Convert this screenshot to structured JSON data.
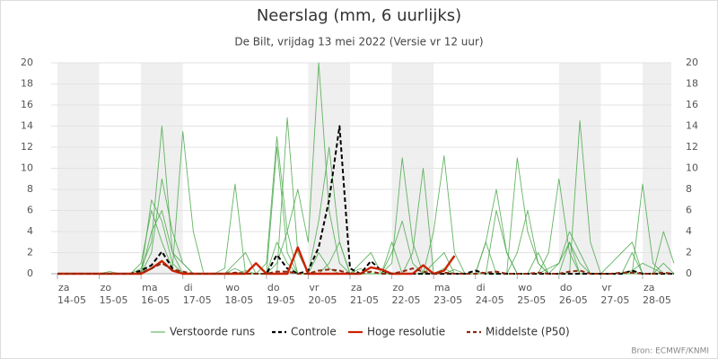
{
  "chart_data": {
    "type": "line",
    "title": "Neerslag (mm, 6 uurlijks)",
    "subtitle": "De Bilt, vrijdag 13 mei 2022 (Versie vr 12 uur)",
    "source": "Bron: ECMWF/KNMI",
    "days": [
      {
        "weekday": "za",
        "date": "14-05"
      },
      {
        "weekday": "zo",
        "date": "15-05"
      },
      {
        "weekday": "ma",
        "date": "16-05"
      },
      {
        "weekday": "di",
        "date": "17-05"
      },
      {
        "weekday": "wo",
        "date": "18-05"
      },
      {
        "weekday": "do",
        "date": "19-05"
      },
      {
        "weekday": "vr",
        "date": "20-05"
      },
      {
        "weekday": "za",
        "date": "21-05"
      },
      {
        "weekday": "zo",
        "date": "22-05"
      },
      {
        "weekday": "ma",
        "date": "23-05"
      },
      {
        "weekday": "di",
        "date": "24-05"
      },
      {
        "weekday": "wo",
        "date": "25-05"
      },
      {
        "weekday": "do",
        "date": "26-05"
      },
      {
        "weekday": "vr",
        "date": "27-05"
      },
      {
        "weekday": "za",
        "date": "28-05"
      }
    ],
    "shaded_days": [
      0,
      2,
      6,
      8,
      12,
      14
    ],
    "ylim": [
      0,
      20
    ],
    "yticks": [
      0,
      2,
      4,
      6,
      8,
      10,
      12,
      14,
      16,
      18,
      20
    ],
    "y2lim": [
      0,
      20
    ],
    "y2ticks": [
      0,
      2,
      4,
      6,
      8,
      10,
      12,
      14,
      16,
      18,
      20
    ],
    "grid": true,
    "legend": "bottom",
    "series": [
      {
        "name": "Verstoorde runs",
        "color": "#4aa84a",
        "members": [
          [
            0,
            0,
            0,
            0,
            0,
            0,
            0,
            0,
            0.5,
            3,
            14,
            2,
            0,
            0,
            0,
            0,
            0,
            0,
            0.3,
            0,
            0,
            1,
            4,
            8,
            3,
            20,
            6,
            1,
            0,
            0.5,
            0,
            0,
            2,
            5,
            1,
            0,
            0,
            0,
            0.4,
            0,
            0,
            3,
            8,
            2,
            0,
            0,
            0,
            0.5,
            1,
            4,
            2,
            0,
            0,
            0,
            0,
            0.3,
            1,
            0.5,
            0,
            0
          ],
          [
            0,
            0,
            0,
            0,
            0,
            0,
            0,
            0,
            1,
            6,
            3,
            0.5,
            13.5,
            4,
            0,
            0,
            0,
            0.5,
            0,
            0,
            0,
            12,
            2,
            0,
            0,
            0,
            1,
            3,
            0,
            0,
            0,
            0,
            1,
            11,
            3,
            0,
            0,
            0.5,
            0,
            0,
            0,
            0,
            0,
            0,
            11,
            4,
            1,
            0,
            0,
            0,
            14.5,
            3,
            0,
            0,
            0,
            0,
            0,
            0,
            0,
            0
          ],
          [
            0,
            0,
            0,
            0,
            0,
            0,
            0,
            0,
            0,
            7,
            5,
            1,
            0,
            0,
            0,
            0,
            0.5,
            8.5,
            0,
            0,
            0,
            0,
            14.8,
            2,
            0,
            0,
            0,
            0,
            0,
            0,
            0,
            0,
            0,
            0,
            2,
            10,
            0,
            0,
            0,
            0,
            0,
            3,
            0,
            0,
            0,
            0,
            0,
            2,
            9,
            2,
            0,
            0,
            0,
            0,
            0,
            0,
            8.5,
            1,
            0,
            0
          ],
          [
            0,
            0,
            0,
            0,
            0,
            0.2,
            0,
            0,
            0,
            2,
            9,
            4,
            1,
            0,
            0,
            0,
            0,
            0,
            0,
            0,
            1,
            13,
            4,
            0,
            0,
            5,
            12,
            3,
            0,
            0,
            0,
            0,
            0,
            0,
            0,
            0,
            4,
            11.2,
            2,
            0,
            0,
            0,
            0,
            0,
            2,
            6,
            1,
            0,
            0,
            3,
            1,
            0,
            0,
            0,
            0,
            2,
            0,
            0,
            4,
            1
          ],
          [
            0,
            0,
            0,
            0,
            0,
            0,
            0,
            0,
            0,
            4,
            6,
            2,
            1,
            0,
            0,
            0,
            0,
            1,
            2,
            0,
            0,
            3,
            1,
            0,
            0,
            2,
            0.5,
            0,
            0,
            1,
            2,
            0,
            3,
            0,
            0,
            0,
            1,
            2,
            0,
            0,
            0,
            0,
            6,
            2,
            0,
            0,
            2,
            0,
            1,
            3,
            0,
            0,
            0,
            1,
            2,
            3,
            0,
            0,
            1,
            0
          ]
        ]
      },
      {
        "name": "Controle",
        "color": "#000000",
        "dash": true,
        "values": [
          0,
          0,
          0,
          0,
          0,
          0,
          0,
          0,
          0.3,
          0.8,
          2.1,
          0.5,
          0,
          0,
          0,
          0,
          0,
          0,
          0,
          0,
          0,
          1.8,
          0.5,
          0,
          0.3,
          2.5,
          7,
          14,
          0.5,
          0,
          1.2,
          0.3,
          0,
          0,
          0,
          0,
          0,
          0,
          0,
          0,
          0.3,
          0,
          0,
          0,
          0,
          0,
          0,
          0,
          0,
          0,
          0,
          0,
          0,
          0,
          0,
          0.3,
          0,
          0,
          0,
          0
        ]
      },
      {
        "name": "Hoge resolutie",
        "color": "#cc2200",
        "dash": false,
        "values": [
          0,
          0,
          0,
          0,
          0,
          0,
          0,
          0,
          0,
          0.5,
          1.2,
          0.3,
          0,
          0,
          0,
          0,
          0,
          0,
          0,
          1,
          0,
          0,
          0,
          2.5,
          0,
          0,
          0,
          0,
          0,
          0,
          0.6,
          0.4,
          0,
          0,
          0,
          0.8,
          0,
          0.3,
          1.7,
          null,
          null,
          null,
          null,
          null,
          null,
          null,
          null,
          null,
          null,
          null,
          null,
          null,
          null,
          null,
          null,
          null,
          null,
          null,
          null,
          null
        ]
      },
      {
        "name": "Middelste (P50)",
        "color": "#8b2a10",
        "dash": true,
        "values": [
          0,
          0,
          0,
          0,
          0,
          0,
          0,
          0,
          0.1,
          0.5,
          1,
          0.4,
          0.2,
          0,
          0,
          0,
          0,
          0.1,
          0,
          0,
          0,
          0.2,
          0.2,
          0,
          0,
          0.3,
          0.4,
          0.3,
          0,
          0,
          0.2,
          0,
          0,
          0.2,
          0.5,
          0.2,
          0,
          0.1,
          0,
          0,
          0,
          0.1,
          0.2,
          0,
          0,
          0,
          0.1,
          0,
          0,
          0.2,
          0.3,
          0,
          0,
          0,
          0.1,
          0.1,
          0,
          0,
          0.1,
          0
        ]
      }
    ]
  }
}
